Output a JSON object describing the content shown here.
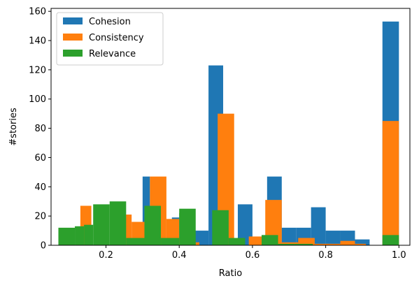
{
  "chart_data": {
    "type": "bar",
    "xlabel": "Ratio",
    "ylabel": "#stories",
    "xlim": [
      0.05,
      1.03
    ],
    "ylim": [
      0,
      162
    ],
    "x_ticks": [
      0.2,
      0.4,
      0.6,
      0.8,
      1.0
    ],
    "x_tick_labels": [
      "0.2",
      "0.4",
      "0.6",
      "0.8",
      "1.0"
    ],
    "y_ticks": [
      0,
      20,
      40,
      60,
      80,
      100,
      120,
      140,
      160
    ],
    "y_tick_labels": [
      "0",
      "20",
      "40",
      "60",
      "80",
      "100",
      "120",
      "140",
      "160"
    ],
    "legend_position": "top-left",
    "series": [
      {
        "name": "Cohesion",
        "color": "#1f77b4",
        "bars": [
          {
            "x0": 0.3,
            "x1": 0.32,
            "value": 47
          },
          {
            "x0": 0.38,
            "x1": 0.4,
            "value": 19
          },
          {
            "x0": 0.4,
            "x1": 0.44,
            "value": 22
          },
          {
            "x0": 0.44,
            "x1": 0.48,
            "value": 10
          },
          {
            "x0": 0.48,
            "x1": 0.52,
            "value": 123
          },
          {
            "x0": 0.56,
            "x1": 0.6,
            "value": 28
          },
          {
            "x0": 0.64,
            "x1": 0.68,
            "value": 47
          },
          {
            "x0": 0.68,
            "x1": 0.72,
            "value": 12
          },
          {
            "x0": 0.72,
            "x1": 0.76,
            "value": 12
          },
          {
            "x0": 0.76,
            "x1": 0.8,
            "value": 26
          },
          {
            "x0": 0.8,
            "x1": 0.84,
            "value": 10
          },
          {
            "x0": 0.84,
            "x1": 0.88,
            "value": 10
          },
          {
            "x0": 0.88,
            "x1": 0.92,
            "value": 4
          },
          {
            "x0": 0.955,
            "x1": 1.0,
            "value": 153
          }
        ]
      },
      {
        "name": "Consistency",
        "color": "#ff7f0e",
        "bars": [
          {
            "x0": 0.13,
            "x1": 0.16,
            "value": 27
          },
          {
            "x0": 0.25,
            "x1": 0.27,
            "value": 21
          },
          {
            "x0": 0.27,
            "x1": 0.31,
            "value": 16
          },
          {
            "x0": 0.31,
            "x1": 0.36,
            "value": 5
          },
          {
            "x0": 0.32,
            "x1": 0.365,
            "value": 47
          },
          {
            "x0": 0.365,
            "x1": 0.4,
            "value": 18
          },
          {
            "x0": 0.4,
            "x1": 0.43,
            "value": 5
          },
          {
            "x0": 0.445,
            "x1": 0.455,
            "value": 2
          },
          {
            "x0": 0.505,
            "x1": 0.55,
            "value": 90
          },
          {
            "x0": 0.59,
            "x1": 0.635,
            "value": 6
          },
          {
            "x0": 0.635,
            "x1": 0.68,
            "value": 31
          },
          {
            "x0": 0.68,
            "x1": 0.725,
            "value": 2
          },
          {
            "x0": 0.725,
            "x1": 0.77,
            "value": 5
          },
          {
            "x0": 0.77,
            "x1": 0.81,
            "value": 1
          },
          {
            "x0": 0.81,
            "x1": 0.855,
            "value": 1
          },
          {
            "x0": 0.84,
            "x1": 0.88,
            "value": 3
          },
          {
            "x0": 0.88,
            "x1": 0.91,
            "value": 1
          },
          {
            "x0": 0.955,
            "x1": 1.0,
            "value": 85
          }
        ]
      },
      {
        "name": "Relevance",
        "color": "#2ca02c",
        "bars": [
          {
            "x0": 0.07,
            "x1": 0.115,
            "value": 12
          },
          {
            "x0": 0.115,
            "x1": 0.14,
            "value": 13
          },
          {
            "x0": 0.14,
            "x1": 0.165,
            "value": 14
          },
          {
            "x0": 0.165,
            "x1": 0.21,
            "value": 28
          },
          {
            "x0": 0.21,
            "x1": 0.255,
            "value": 30
          },
          {
            "x0": 0.255,
            "x1": 0.305,
            "value": 5
          },
          {
            "x0": 0.305,
            "x1": 0.35,
            "value": 27
          },
          {
            "x0": 0.35,
            "x1": 0.4,
            "value": 5
          },
          {
            "x0": 0.4,
            "x1": 0.445,
            "value": 25
          },
          {
            "x0": 0.49,
            "x1": 0.535,
            "value": 24
          },
          {
            "x0": 0.535,
            "x1": 0.58,
            "value": 5
          },
          {
            "x0": 0.625,
            "x1": 0.67,
            "value": 7
          },
          {
            "x0": 0.67,
            "x1": 0.715,
            "value": 1
          },
          {
            "x0": 0.715,
            "x1": 0.765,
            "value": 1
          },
          {
            "x0": 0.955,
            "x1": 1.0,
            "value": 7
          }
        ]
      }
    ]
  }
}
